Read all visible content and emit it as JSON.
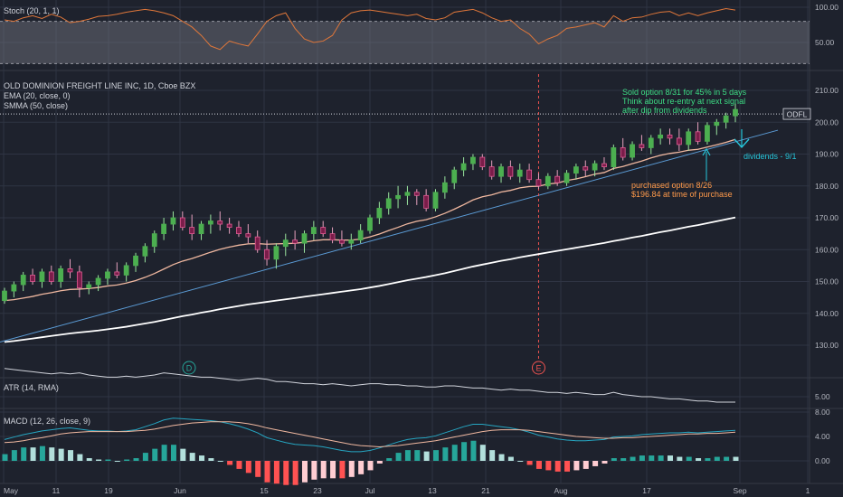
{
  "colors": {
    "background": "#1e222d",
    "grid": "#2f3443",
    "up": "#26a69a",
    "up_bright": "#4caf50",
    "down": "#c2185b",
    "ema": "#f0b8a0",
    "smma": "#ffffff",
    "trendline": "#5b9bd5",
    "stoch": "#e0773a",
    "atr": "#d1d4dc",
    "macd": "#2962ff",
    "signal": "#ff9800",
    "note_green": "#3ddc84",
    "note_orange": "#ff9a4a",
    "note_teal": "#26c6da",
    "price_tag": "#d1d4dc"
  },
  "panes": {
    "stoch": {
      "legend": "Stoch (20, 1, 1)",
      "ticks": [
        "100.00",
        "50.00"
      ]
    },
    "price": {
      "legend_title": "OLD DOMINION FREIGHT LINE INC, 1D, Cboe BZX",
      "legend_ema": "EMA (20, close, 0)",
      "legend_smma": "SMMA (50, close)",
      "ticks": [
        "210.00",
        "200.00",
        "190.00",
        "180.00",
        "170.00",
        "160.00",
        "150.00",
        "140.00",
        "130.00"
      ],
      "symbol_tag": "ODFL"
    },
    "atr": {
      "legend": "ATR (14, RMA)",
      "ticks": [
        "5.00"
      ]
    },
    "macd": {
      "legend": "MACD (12, 26, close, 9)",
      "ticks": [
        "8.00",
        "4.00",
        "0.00"
      ]
    }
  },
  "x_axis": {
    "labels": [
      "May",
      "11",
      "19",
      "Jun",
      "15",
      "23",
      "Jul",
      "13",
      "21",
      "Aug",
      "17",
      "Sep",
      "1"
    ]
  },
  "event_markers": [
    {
      "label": "D"
    },
    {
      "label": "E"
    }
  ],
  "annotations": {
    "sold": [
      "Sold option 8/31 for 45% in 5 days",
      "Think about re-entry at next signal",
      "after dip from dividends"
    ],
    "purchased": [
      "purchased option 8/26",
      "$196.84 at time of purchase"
    ],
    "dividends": "dividends - 9/1"
  },
  "chart_data": {
    "type": "candlestick",
    "series": [
      {
        "name": "OLD DOMINION FREIGHT LINE INC, 1D, Cboe BZX",
        "ohlc": [
          [
            144,
            148,
            143,
            147
          ],
          [
            147,
            150,
            145,
            149
          ],
          [
            149,
            153,
            147,
            152
          ],
          [
            152,
            154,
            149,
            150
          ],
          [
            150,
            154,
            148,
            153
          ],
          [
            153,
            155,
            149,
            150
          ],
          [
            150,
            155,
            148,
            154
          ],
          [
            154,
            157,
            151,
            153
          ],
          [
            153,
            155,
            145,
            148
          ],
          [
            148,
            150,
            146,
            149
          ],
          [
            149,
            152,
            147,
            151
          ],
          [
            151,
            154,
            149,
            153
          ],
          [
            153,
            156,
            151,
            152
          ],
          [
            152,
            156,
            150,
            155
          ],
          [
            155,
            159,
            153,
            158
          ],
          [
            158,
            162,
            156,
            161
          ],
          [
            161,
            166,
            159,
            165
          ],
          [
            165,
            170,
            163,
            168
          ],
          [
            168,
            172,
            166,
            170
          ],
          [
            170,
            172,
            166,
            167
          ],
          [
            167,
            171,
            163,
            165
          ],
          [
            165,
            169,
            163,
            168
          ],
          [
            168,
            171,
            165,
            169
          ],
          [
            169,
            172,
            166,
            168
          ],
          [
            168,
            170,
            165,
            167
          ],
          [
            167,
            169,
            164,
            165
          ],
          [
            165,
            168,
            162,
            164
          ],
          [
            164,
            166,
            159,
            160
          ],
          [
            160,
            163,
            155,
            157
          ],
          [
            157,
            162,
            154,
            161
          ],
          [
            161,
            165,
            158,
            163
          ],
          [
            163,
            166,
            160,
            162
          ],
          [
            162,
            166,
            159,
            165
          ],
          [
            165,
            169,
            163,
            167
          ],
          [
            167,
            169,
            164,
            165
          ],
          [
            165,
            167,
            162,
            163
          ],
          [
            163,
            166,
            161,
            162
          ],
          [
            162,
            165,
            160,
            163
          ],
          [
            163,
            168,
            162,
            166
          ],
          [
            166,
            171,
            165,
            170
          ],
          [
            170,
            175,
            168,
            173
          ],
          [
            173,
            178,
            171,
            176
          ],
          [
            176,
            180,
            173,
            177
          ],
          [
            177,
            180,
            174,
            178
          ],
          [
            178,
            179,
            174,
            177
          ],
          [
            177,
            179,
            172,
            173
          ],
          [
            173,
            179,
            172,
            178
          ],
          [
            178,
            183,
            176,
            181
          ],
          [
            181,
            186,
            179,
            185
          ],
          [
            185,
            189,
            183,
            187
          ],
          [
            187,
            190,
            185,
            189
          ],
          [
            189,
            190,
            185,
            186
          ],
          [
            186,
            188,
            182,
            183
          ],
          [
            183,
            187,
            181,
            186
          ],
          [
            186,
            188,
            182,
            183
          ],
          [
            183,
            187,
            181,
            185
          ],
          [
            185,
            187,
            181,
            182
          ],
          [
            182,
            184,
            179,
            180
          ],
          [
            180,
            184,
            179,
            183
          ],
          [
            183,
            185,
            180,
            181
          ],
          [
            181,
            185,
            180,
            184
          ],
          [
            184,
            187,
            182,
            186
          ],
          [
            186,
            188,
            183,
            185
          ],
          [
            185,
            188,
            183,
            187
          ],
          [
            187,
            189,
            185,
            186
          ],
          [
            186,
            193,
            185,
            192
          ],
          [
            192,
            195,
            188,
            189
          ],
          [
            189,
            194,
            188,
            193
          ],
          [
            193,
            196,
            191,
            192
          ],
          [
            192,
            196,
            190,
            195
          ],
          [
            195,
            198,
            193,
            196
          ],
          [
            196,
            198,
            193,
            195
          ],
          [
            195,
            198,
            191,
            193
          ],
          [
            193,
            198,
            191,
            197
          ],
          [
            197,
            200,
            193,
            194
          ],
          [
            194,
            200,
            193,
            199
          ],
          [
            199,
            201,
            196,
            200
          ],
          [
            200,
            203,
            198,
            202
          ],
          [
            202,
            206,
            200,
            204
          ]
        ]
      },
      {
        "name": "EMA (20, close, 0)",
        "values": [
          144,
          144.3,
          144.8,
          145.3,
          146.0,
          146.5,
          147.1,
          147.5,
          147.6,
          147.8,
          148.1,
          148.6,
          148.9,
          149.5,
          150.3,
          151.3,
          152.5,
          153.9,
          155.3,
          156.4,
          157.2,
          158.2,
          159.2,
          160.1,
          160.8,
          161.4,
          161.8,
          161.9,
          161.7,
          161.8,
          161.9,
          162.0,
          162.3,
          162.8,
          163.1,
          163.1,
          163.0,
          163.0,
          163.3,
          164.0,
          164.9,
          166.0,
          167.0,
          168.1,
          168.9,
          169.4,
          170.3,
          171.4,
          172.7,
          174.1,
          175.6,
          176.6,
          177.2,
          178.1,
          178.6,
          179.4,
          179.8,
          179.9,
          180.6,
          180.9,
          181.7,
          182.2,
          182.9,
          183.7,
          184.2,
          185.5,
          186.1,
          187.0,
          187.8,
          188.8,
          189.6,
          190.2,
          190.6,
          191.2,
          191.5,
          192.2,
          192.9,
          193.7,
          194.6
        ]
      },
      {
        "name": "SMMA (50, close)",
        "values": [
          131.0,
          131.3,
          131.7,
          132.1,
          132.5,
          132.9,
          133.3,
          133.7,
          134.0,
          134.3,
          134.6,
          135.0,
          135.4,
          135.8,
          136.3,
          136.8,
          137.3,
          137.9,
          138.5,
          139.1,
          139.6,
          140.2,
          140.7,
          141.3,
          141.8,
          142.3,
          142.8,
          143.2,
          143.6,
          144.0,
          144.4,
          144.8,
          145.2,
          145.6,
          146.0,
          146.4,
          146.8,
          147.2,
          147.6,
          148.1,
          148.6,
          149.2,
          149.8,
          150.4,
          150.9,
          151.4,
          152.0,
          152.6,
          153.3,
          154.0,
          154.7,
          155.3,
          155.9,
          156.5,
          157.0,
          157.6,
          158.1,
          158.6,
          159.1,
          159.6,
          160.1,
          160.6,
          161.1,
          161.6,
          162.1,
          162.7,
          163.2,
          163.8,
          164.3,
          164.9,
          165.5,
          166.0,
          166.6,
          167.2,
          167.7,
          168.3,
          168.9,
          169.5,
          170.1
        ]
      },
      {
        "name": "Stoch (20, 1, 1)",
        "values": [
          82,
          80,
          85,
          88,
          84,
          90,
          86,
          78,
          80,
          83,
          87,
          88,
          90,
          93,
          95,
          97,
          95,
          92,
          88,
          80,
          72,
          60,
          45,
          40,
          52,
          48,
          45,
          62,
          80,
          88,
          92,
          70,
          55,
          50,
          52,
          60,
          82,
          92,
          95,
          96,
          94,
          92,
          90,
          88,
          90,
          84,
          82,
          85,
          93,
          95,
          97,
          92,
          85,
          80,
          82,
          70,
          62,
          48,
          55,
          60,
          70,
          72,
          75,
          78,
          72,
          88,
          80,
          85,
          86,
          90,
          93,
          94,
          88,
          92,
          88,
          92,
          95,
          98,
          96
        ]
      },
      {
        "name": "ATR (14, RMA)",
        "values": [
          6.3,
          6.25,
          6.2,
          6.15,
          6.1,
          6.05,
          6.1,
          6.05,
          6.1,
          6.0,
          5.95,
          5.9,
          5.9,
          5.95,
          5.9,
          5.95,
          6.0,
          6.1,
          6.05,
          6.0,
          5.95,
          5.9,
          5.9,
          5.85,
          5.8,
          5.75,
          5.8,
          5.85,
          5.8,
          5.7,
          5.7,
          5.65,
          5.6,
          5.6,
          5.55,
          5.6,
          5.55,
          5.5,
          5.55,
          5.6,
          5.6,
          5.55,
          5.55,
          5.5,
          5.5,
          5.45,
          5.45,
          5.5,
          5.5,
          5.45,
          5.4,
          5.4,
          5.35,
          5.3,
          5.35,
          5.3,
          5.3,
          5.25,
          5.2,
          5.2,
          5.15,
          5.2,
          5.15,
          5.1,
          5.1,
          5.2,
          5.1,
          5.05,
          5.0,
          5.0,
          4.95,
          4.9,
          4.9,
          4.85,
          4.8,
          4.8,
          4.75,
          4.75,
          4.75
        ]
      },
      {
        "name": "MACD (12, 26, close, 9)",
        "values": [
          3.5,
          3.9,
          4.3,
          4.6,
          4.9,
          5.1,
          5.3,
          5.4,
          5.2,
          5.0,
          4.9,
          4.9,
          4.8,
          4.9,
          5.1,
          5.6,
          6.1,
          6.7,
          7.0,
          6.9,
          6.8,
          6.7,
          6.6,
          6.4,
          6.1,
          5.7,
          5.2,
          4.6,
          3.8,
          3.4,
          3.0,
          2.7,
          2.6,
          2.5,
          2.3,
          2.0,
          1.7,
          1.5,
          1.5,
          1.7,
          2.1,
          2.6,
          3.1,
          3.5,
          3.7,
          3.8,
          4.1,
          4.6,
          5.1,
          5.6,
          6.0,
          6.0,
          5.8,
          5.6,
          5.4,
          5.1,
          4.7,
          4.2,
          3.9,
          3.6,
          3.4,
          3.3,
          3.3,
          3.4,
          3.5,
          3.9,
          4.0,
          4.1,
          4.3,
          4.4,
          4.5,
          4.6,
          4.6,
          4.7,
          4.6,
          4.7,
          4.8,
          4.9,
          5.0
        ]
      },
      {
        "name": "Signal",
        "values": [
          3.0,
          3.1,
          3.3,
          3.6,
          3.8,
          4.1,
          4.4,
          4.6,
          4.7,
          4.8,
          4.8,
          4.8,
          4.8,
          4.8,
          4.9,
          5.0,
          5.2,
          5.5,
          5.8,
          6.0,
          6.2,
          6.3,
          6.4,
          6.4,
          6.4,
          6.3,
          6.1,
          5.8,
          5.4,
          5.1,
          4.8,
          4.5,
          4.2,
          3.9,
          3.6,
          3.3,
          3.0,
          2.7,
          2.5,
          2.4,
          2.3,
          2.4,
          2.5,
          2.7,
          2.9,
          3.1,
          3.3,
          3.6,
          3.9,
          4.2,
          4.5,
          4.8,
          5.0,
          5.1,
          5.1,
          5.1,
          5.0,
          4.8,
          4.6,
          4.4,
          4.2,
          4.0,
          3.9,
          3.8,
          3.7,
          3.7,
          3.8,
          3.8,
          3.9,
          4.0,
          4.1,
          4.2,
          4.3,
          4.4,
          4.4,
          4.5,
          4.5,
          4.6,
          4.7
        ]
      }
    ],
    "y_range": {
      "price": [
        125,
        215
      ],
      "stoch": [
        0,
        100
      ],
      "atr": [
        4,
        7
      ],
      "macd": [
        -2,
        8
      ]
    }
  }
}
